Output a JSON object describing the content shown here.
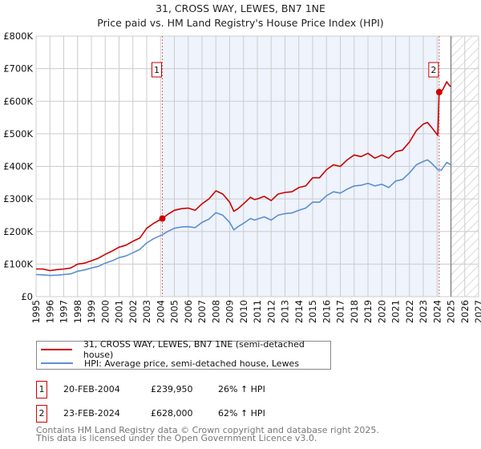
{
  "chart_data": {
    "type": "line",
    "title": "31, CROSS WAY, LEWES, BN7 1NE",
    "subtitle": "Price paid vs. HM Land Registry's House Price Index (HPI)",
    "xlabel": "",
    "ylabel": "",
    "xlim": [
      1995,
      2027
    ],
    "ylim": [
      0,
      800000
    ],
    "yticks": [
      0,
      100000,
      200000,
      300000,
      400000,
      500000,
      600000,
      700000,
      800000
    ],
    "ytick_labels": [
      "£0",
      "£100K",
      "£200K",
      "£300K",
      "£400K",
      "£500K",
      "£600K",
      "£700K",
      "£800K"
    ],
    "xticks": [
      "1995",
      "1996",
      "1997",
      "1998",
      "1999",
      "2000",
      "2001",
      "2002",
      "2003",
      "2004",
      "2005",
      "2006",
      "2007",
      "2008",
      "2009",
      "2010",
      "2011",
      "2012",
      "2013",
      "2014",
      "2015",
      "2016",
      "2017",
      "2018",
      "2019",
      "2020",
      "2021",
      "2022",
      "2023",
      "2024",
      "2025",
      "2026",
      "2027"
    ],
    "grid": true,
    "shaded_range": [
      2004.13,
      2024.15
    ],
    "forecast_hatch_from": 2025.0,
    "colors": {
      "property": "#cc0000",
      "hpi": "#5b8fd1",
      "shade": "#eef3fc"
    },
    "series": [
      {
        "name": "31, CROSS WAY, LEWES, BN7 1NE (semi-detached house)",
        "x": [
          1995,
          1995.5,
          1996,
          1996.5,
          1997,
          1997.5,
          1998,
          1998.5,
          1999,
          1999.5,
          2000,
          2000.5,
          2001,
          2001.5,
          2002,
          2002.5,
          2003,
          2003.5,
          2004.13,
          2004.5,
          2005,
          2005.5,
          2006,
          2006.5,
          2007,
          2007.5,
          2008,
          2008.5,
          2009,
          2009.3,
          2009.6,
          2010,
          2010.5,
          2010.8,
          2011,
          2011.5,
          2012,
          2012.5,
          2013,
          2013.5,
          2014,
          2014.5,
          2015,
          2015.5,
          2016,
          2016.5,
          2017,
          2017.5,
          2018,
          2018.5,
          2019,
          2019.5,
          2020,
          2020.5,
          2021,
          2021.5,
          2022,
          2022.5,
          2023,
          2023.3,
          2023.6,
          2024.05,
          2024.15,
          2024.4,
          2024.7,
          2024.85,
          2025
        ],
        "values": [
          85000,
          85000,
          80000,
          83000,
          85000,
          88000,
          100000,
          103000,
          110000,
          118000,
          130000,
          140000,
          152000,
          158000,
          170000,
          180000,
          210000,
          225000,
          239950,
          252000,
          265000,
          270000,
          272000,
          265000,
          285000,
          300000,
          325000,
          315000,
          290000,
          262000,
          270000,
          285000,
          305000,
          298000,
          300000,
          308000,
          295000,
          315000,
          320000,
          322000,
          335000,
          340000,
          365000,
          365000,
          390000,
          405000,
          400000,
          420000,
          435000,
          430000,
          440000,
          425000,
          435000,
          425000,
          445000,
          450000,
          475000,
          510000,
          530000,
          535000,
          520000,
          495000,
          628000,
          635000,
          660000,
          650000,
          645000
        ]
      },
      {
        "name": "HPI: Average price, semi-detached house, Lewes",
        "x": [
          1995,
          1995.5,
          1996,
          1996.5,
          1997,
          1997.5,
          1998,
          1998.5,
          1999,
          1999.5,
          2000,
          2000.5,
          2001,
          2001.5,
          2002,
          2002.5,
          2003,
          2003.5,
          2004.13,
          2004.5,
          2005,
          2005.5,
          2006,
          2006.5,
          2007,
          2007.5,
          2008,
          2008.5,
          2009,
          2009.3,
          2009.6,
          2010,
          2010.5,
          2010.8,
          2011,
          2011.5,
          2012,
          2012.5,
          2013,
          2013.5,
          2014,
          2014.5,
          2015,
          2015.5,
          2016,
          2016.5,
          2017,
          2017.5,
          2018,
          2018.5,
          2019,
          2019.5,
          2020,
          2020.5,
          2021,
          2021.5,
          2022,
          2022.5,
          2023,
          2023.3,
          2023.6,
          2024.05,
          2024.3,
          2024.7,
          2025
        ],
        "values": [
          68000,
          67000,
          65000,
          66000,
          68000,
          70000,
          78000,
          82000,
          88000,
          93000,
          103000,
          110000,
          120000,
          125000,
          135000,
          145000,
          165000,
          178000,
          190000,
          200000,
          210000,
          214000,
          215000,
          212000,
          228000,
          238000,
          258000,
          250000,
          228000,
          205000,
          215000,
          225000,
          240000,
          235000,
          238000,
          245000,
          235000,
          250000,
          255000,
          257000,
          265000,
          272000,
          290000,
          290000,
          310000,
          322000,
          318000,
          330000,
          340000,
          342000,
          348000,
          340000,
          345000,
          335000,
          355000,
          360000,
          380000,
          405000,
          415000,
          420000,
          410000,
          390000,
          388000,
          412000,
          405000
        ]
      }
    ],
    "annotations": [
      {
        "label": "1",
        "x": 2004.13,
        "value": 239950
      },
      {
        "label": "2",
        "x": 2024.15,
        "value": 628000
      }
    ]
  },
  "legend": {
    "items": [
      "31, CROSS WAY, LEWES, BN7 1NE (semi-detached house)",
      "HPI: Average price, semi-detached house, Lewes"
    ]
  },
  "transactions": [
    {
      "num": "1",
      "date": "20-FEB-2004",
      "price": "£239,950",
      "hpi": "26% ↑ HPI"
    },
    {
      "num": "2",
      "date": "23-FEB-2024",
      "price": "£628,000",
      "hpi": "62% ↑ HPI"
    }
  ],
  "footer": {
    "line1": "Contains HM Land Registry data © Crown copyright and database right 2025.",
    "line2": "This data is licensed under the Open Government Licence v3.0."
  }
}
